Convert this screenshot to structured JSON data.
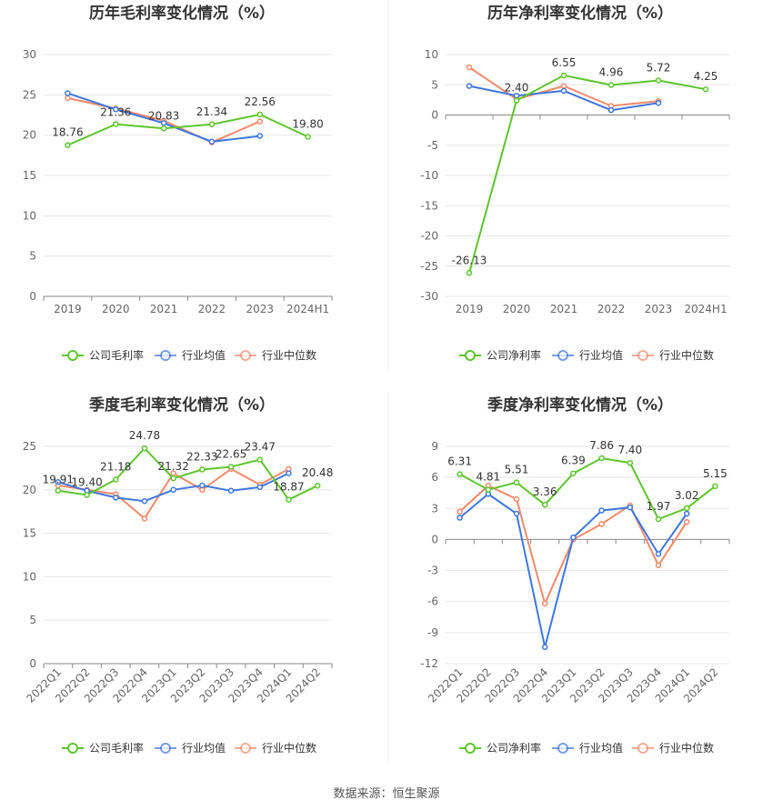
{
  "source": "数据来源：恒生聚源",
  "colors": {
    "company": "#5ec42e",
    "avg": "#3f76dd",
    "median": "#f18a6b",
    "grid": "#e6e6e6",
    "axis": "#666666",
    "text": "#333333"
  },
  "chart_data": [
    {
      "id": "annual-gross",
      "type": "line",
      "title": "历年毛利率变化情况（%）",
      "categories": [
        "2019",
        "2020",
        "2021",
        "2022",
        "2023",
        "2024H1"
      ],
      "ylim": [
        0,
        30
      ],
      "yticks": [
        0,
        5,
        10,
        15,
        20,
        25,
        30
      ],
      "grid": true,
      "legend": "bottom",
      "series": [
        {
          "name": "公司毛利率",
          "role": "company",
          "values": [
            18.76,
            21.36,
            20.83,
            21.34,
            22.56,
            19.8
          ],
          "labels": [
            "18.76",
            "21.36",
            "20.83",
            "21.34",
            "22.56",
            "19.80"
          ]
        },
        {
          "name": "行业均值",
          "role": "avg",
          "values": [
            25.2,
            23.2,
            21.5,
            19.2,
            19.9,
            null
          ]
        },
        {
          "name": "行业中位数",
          "role": "median",
          "values": [
            24.6,
            23.3,
            21.8,
            19.1,
            21.7,
            null
          ]
        }
      ]
    },
    {
      "id": "annual-net",
      "type": "line",
      "title": "历年净利率变化情况（%）",
      "categories": [
        "2019",
        "2020",
        "2021",
        "2022",
        "2023",
        "2024H1"
      ],
      "ylim": [
        -30,
        10
      ],
      "yticks": [
        -30,
        -25,
        -20,
        -15,
        -10,
        -5,
        0,
        5,
        10
      ],
      "grid": true,
      "legend": "bottom",
      "series": [
        {
          "name": "公司净利率",
          "role": "company",
          "values": [
            -26.13,
            2.4,
            6.55,
            4.96,
            5.72,
            4.25
          ],
          "labels": [
            "-26.13",
            "2.40",
            "6.55",
            "4.96",
            "5.72",
            "4.25"
          ]
        },
        {
          "name": "行业均值",
          "role": "avg",
          "values": [
            4.8,
            3.2,
            4.0,
            0.8,
            2.0,
            null
          ]
        },
        {
          "name": "行业中位数",
          "role": "median",
          "values": [
            7.9,
            2.6,
            4.8,
            1.5,
            2.3,
            null
          ]
        }
      ]
    },
    {
      "id": "quarter-gross",
      "type": "line",
      "title": "季度毛利率变化情况（%）",
      "categories": [
        "2022Q1",
        "2022Q2",
        "2022Q3",
        "2022Q4",
        "2023Q1",
        "2023Q2",
        "2023Q3",
        "2023Q4",
        "2024Q1",
        "2024Q2"
      ],
      "ylim": [
        0,
        25
      ],
      "yticks": [
        0,
        5,
        10,
        15,
        20,
        25
      ],
      "grid": true,
      "legend": "bottom",
      "series": [
        {
          "name": "公司毛利率",
          "role": "company",
          "values": [
            19.91,
            19.4,
            21.18,
            24.78,
            21.32,
            22.33,
            22.65,
            23.47,
            18.87,
            20.48
          ],
          "labels": [
            "19.91",
            "19.40",
            "21.18",
            "24.78",
            "21.32",
            "22.33",
            "22.65",
            "23.47",
            "18.87",
            "20.48"
          ]
        },
        {
          "name": "行业均值",
          "role": "avg",
          "values": [
            20.9,
            19.9,
            19.1,
            18.7,
            20.0,
            20.5,
            19.9,
            20.3,
            21.9,
            null
          ]
        },
        {
          "name": "行业中位数",
          "role": "median",
          "values": [
            20.5,
            20.0,
            19.5,
            16.7,
            21.9,
            20.0,
            22.4,
            20.6,
            22.4,
            null
          ]
        }
      ]
    },
    {
      "id": "quarter-net",
      "type": "line",
      "title": "季度净利率变化情况（%）",
      "categories": [
        "2022Q1",
        "2022Q2",
        "2022Q3",
        "2022Q4",
        "2023Q1",
        "2023Q2",
        "2023Q3",
        "2023Q4",
        "2024Q1",
        "2024Q2"
      ],
      "ylim": [
        -12,
        9
      ],
      "yticks": [
        -12,
        -9,
        -6,
        -3,
        0,
        3,
        6,
        9
      ],
      "grid": true,
      "legend": "bottom",
      "series": [
        {
          "name": "公司净利率",
          "role": "company",
          "values": [
            6.31,
            4.81,
            5.51,
            3.36,
            6.39,
            7.86,
            7.4,
            1.97,
            3.02,
            5.15
          ],
          "labels": [
            "6.31",
            "4.81",
            "5.51",
            "3.36",
            "6.39",
            "7.86",
            "7.40",
            "1.97",
            "3.02",
            "5.15"
          ]
        },
        {
          "name": "行业均值",
          "role": "avg",
          "values": [
            2.1,
            4.4,
            2.5,
            -10.4,
            0.2,
            2.8,
            3.1,
            -1.4,
            2.5,
            null
          ]
        },
        {
          "name": "行业中位数",
          "role": "median",
          "values": [
            2.7,
            5.2,
            3.9,
            -6.2,
            0.0,
            1.5,
            3.3,
            -2.5,
            1.7,
            null
          ]
        }
      ]
    }
  ]
}
